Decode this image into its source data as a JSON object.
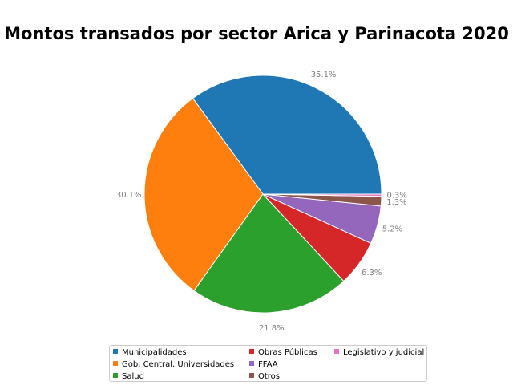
{
  "chart_data": {
    "type": "pie",
    "title": "Montos transados por sector Arica y Parinacota 2020",
    "slices": [
      {
        "label": "Municipalidades",
        "value": 35.1,
        "display": "35.1%",
        "color": "#1f77b4"
      },
      {
        "label": "Gob. Central, Universidades",
        "value": 30.1,
        "display": "30.1%",
        "color": "#ff7f0e"
      },
      {
        "label": "Salud",
        "value": 21.8,
        "display": "21.8%",
        "color": "#2ca02c"
      },
      {
        "label": "Obras Públicas",
        "value": 6.3,
        "display": "6.3%",
        "color": "#d62728"
      },
      {
        "label": "FFAA",
        "value": 5.2,
        "display": "5.2%",
        "color": "#9467bd"
      },
      {
        "label": "Otros",
        "value": 1.3,
        "display": "1.3%",
        "color": "#8c564b"
      },
      {
        "label": "Legislativo y judicial",
        "value": 0.3,
        "display": "0.3%",
        "color": "#e377c2"
      }
    ],
    "start_angle_deg": 0,
    "direction": "counterclockwise",
    "legend_position": "bottom"
  }
}
